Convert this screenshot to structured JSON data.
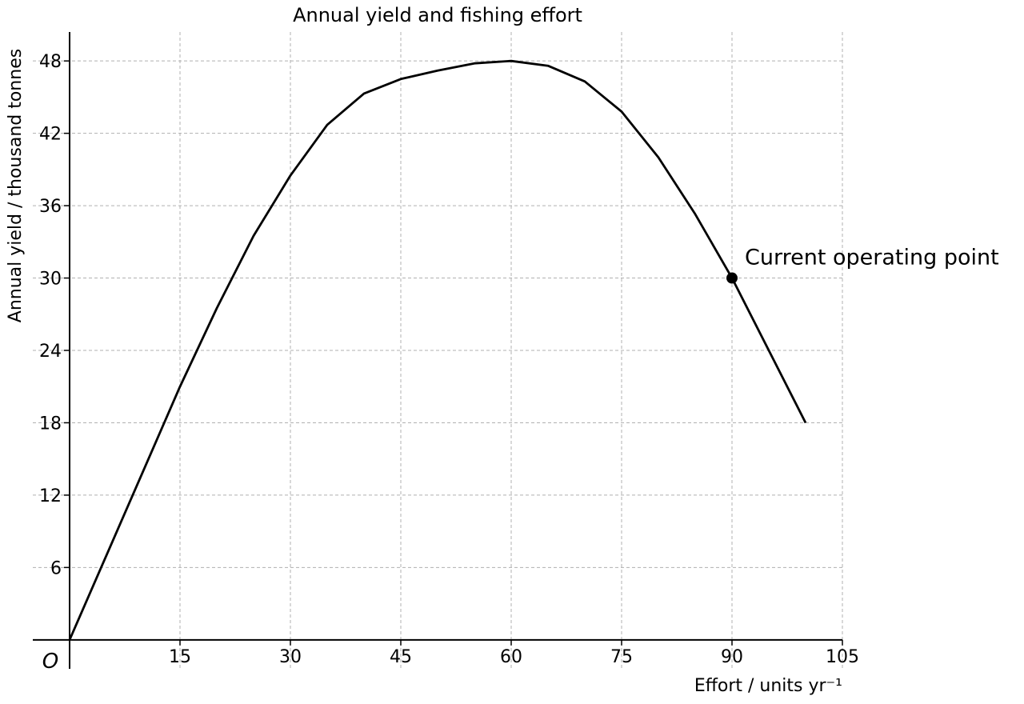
{
  "chart_data": {
    "type": "line",
    "title": "Annual yield and fishing effort",
    "x_label": "Effort / units yr⁻¹",
    "y_label": "Annual yield / thousand tonnes",
    "origin_label": "O",
    "x": [
      0,
      5,
      10,
      15,
      20,
      25,
      30,
      35,
      40,
      45,
      50,
      55,
      60,
      65,
      70,
      75,
      80,
      85,
      90,
      95,
      100
    ],
    "series": [
      {
        "color": "#000000",
        "values": [
          0,
          7,
          14,
          21,
          27.5,
          33.5,
          38.5,
          42.7,
          45.3,
          46.5,
          47.2,
          47.8,
          48,
          47.6,
          46.3,
          43.8,
          40,
          35.3,
          30,
          24,
          18
        ]
      }
    ],
    "annotations": [
      {
        "text": "Current operating point",
        "x": 90,
        "y": 30
      }
    ],
    "xlim": [
      -5,
      105
    ],
    "ylim": [
      -2.4,
      50.4
    ],
    "xticks": [
      15,
      30,
      45,
      60,
      75,
      90,
      105
    ],
    "yticks": [
      6,
      12,
      18,
      24,
      30,
      36,
      42,
      48
    ],
    "grid": true
  }
}
